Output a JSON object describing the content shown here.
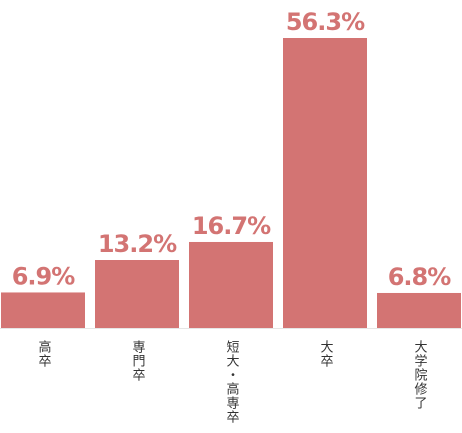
{
  "chart_data": {
    "type": "bar",
    "categories": [
      "高卒",
      "専門卒",
      "短大・高専卒",
      "大卒",
      "大学院修了"
    ],
    "values": [
      6.9,
      13.2,
      16.7,
      56.3,
      6.8
    ],
    "value_labels": [
      "6.9%",
      "13.2%",
      "16.7%",
      "56.3%",
      "6.8%"
    ],
    "color": "#d37473"
  }
}
